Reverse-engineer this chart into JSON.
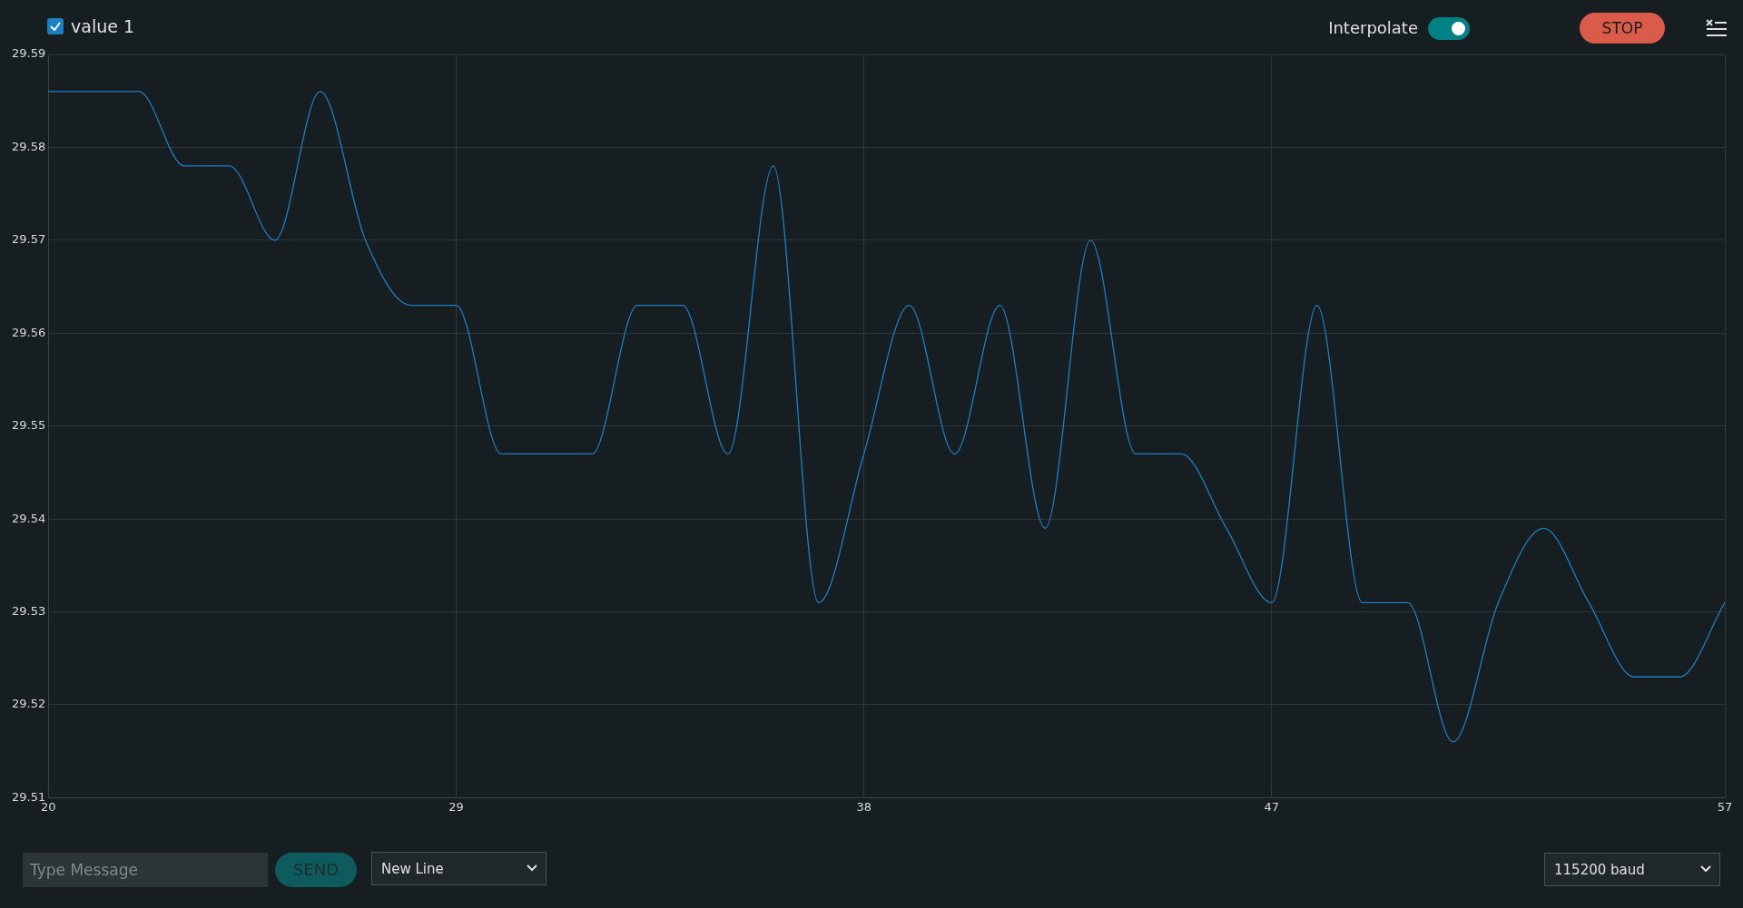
{
  "chart_data": {
    "type": "line",
    "x": [
      20,
      21,
      22,
      23,
      24,
      25,
      26,
      27,
      28,
      29,
      30,
      31,
      32,
      33,
      34,
      35,
      36,
      37,
      38,
      39,
      40,
      41,
      42,
      43,
      44,
      45,
      46,
      47,
      48,
      49,
      50,
      51,
      52,
      53,
      54,
      55,
      56,
      57
    ],
    "series": [
      {
        "name": "value 1",
        "color": "#1b7fc4",
        "values": [
          29.586,
          29.586,
          29.586,
          29.578,
          29.578,
          29.57,
          29.586,
          29.57,
          29.563,
          29.563,
          29.547,
          29.547,
          29.547,
          29.563,
          29.563,
          29.547,
          29.578,
          29.531,
          29.547,
          29.563,
          29.547,
          29.563,
          29.539,
          29.57,
          29.547,
          29.547,
          29.539,
          29.531,
          29.563,
          29.531,
          29.531,
          29.516,
          29.531,
          29.539,
          29.531,
          29.523,
          29.523,
          29.531
        ]
      }
    ],
    "xlim": [
      20,
      57
    ],
    "xticks": [
      20,
      29,
      38,
      47,
      57
    ],
    "ylim": [
      29.51,
      29.59
    ],
    "yticks": [
      29.51,
      29.52,
      29.53,
      29.54,
      29.55,
      29.56,
      29.57,
      29.58,
      29.59
    ],
    "grid": true,
    "legend": "top left",
    "marker": "none",
    "line_style": "solid",
    "annotations": [
      "Interpolate",
      "STOP",
      "Type Message",
      "SEND",
      "New Line",
      "115200 baud"
    ]
  }
}
